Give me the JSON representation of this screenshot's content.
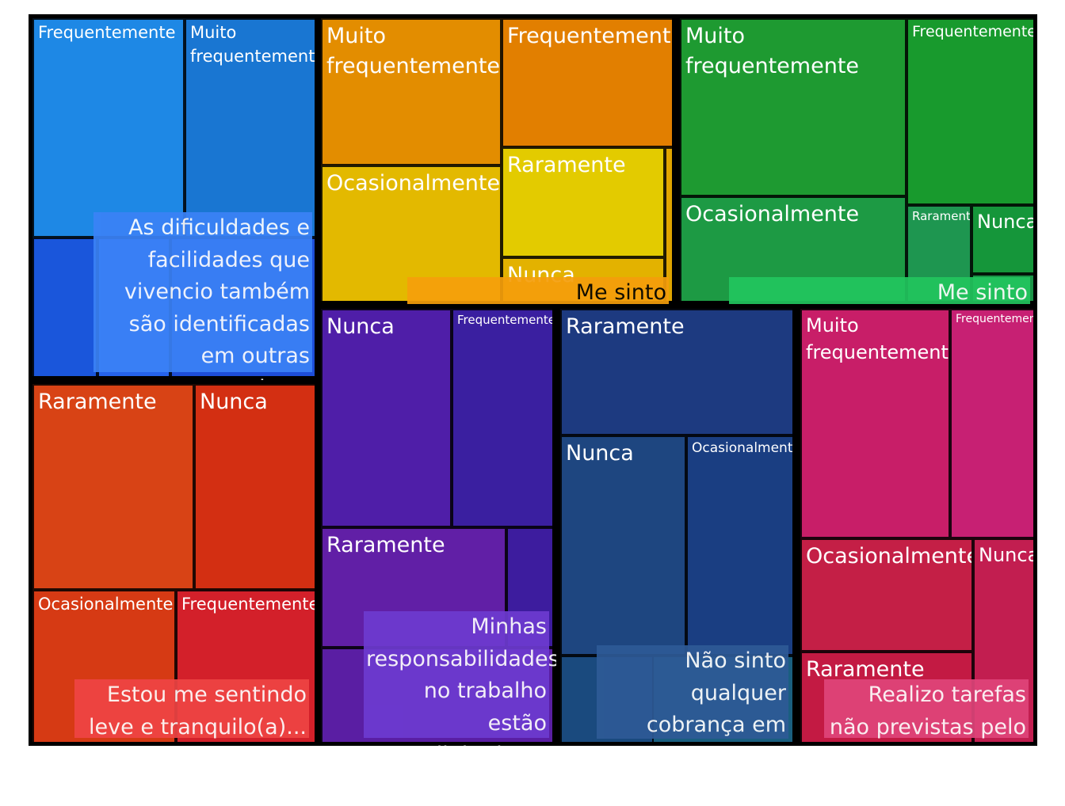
{
  "chart_data": {
    "type": "treemap",
    "groups": [
      {
        "name": "As dificuldades e facilidades que vivencio também são identificadas em outras categorias...",
        "color": "#1e78d8",
        "label_bg": "#3b82f6",
        "label_color": "#ffffff",
        "children": [
          {
            "name": "Frequentemente",
            "color": "#1e88e5"
          },
          {
            "name": "Muito frequentemente",
            "color": "#1976d2"
          },
          {
            "name": "",
            "color": "#1a56db"
          },
          {
            "name": "",
            "color": "#2563eb"
          },
          {
            "name": "",
            "color": "#1d4ed8"
          }
        ]
      },
      {
        "name": "Estou me sentindo leve e tranquilo(a)...",
        "color": "#d84315",
        "label_bg": "#ef4444",
        "label_color": "#ffffff",
        "children": [
          {
            "name": "Raramente",
            "color": "#d84315"
          },
          {
            "name": "Nunca",
            "color": "#d32f12"
          },
          {
            "name": "Ocasionalmente",
            "color": "#d63a14"
          },
          {
            "name": "Frequentemente",
            "color": "#d3202a"
          }
        ]
      },
      {
        "name": "Me sinto pressionado(a)...",
        "color": "#e69500",
        "label_bg": "#f59e0b",
        "label_color": "#000000",
        "children": [
          {
            "name": "Muito frequentemente",
            "color": "#e38d00"
          },
          {
            "name": "Frequentemente",
            "color": "#e27f00"
          },
          {
            "name": "Ocasionalmente",
            "color": "#e3b900"
          },
          {
            "name": "Raramente",
            "color": "#e3cb00"
          },
          {
            "name": "Nunca",
            "color": "#e3b200"
          },
          {
            "name": "",
            "color": "#e0a500"
          }
        ]
      },
      {
        "name": "Me sinto sobrecarregado(a)...",
        "color": "#1f9a38",
        "label_bg": "#22c55e",
        "label_color": "#ffffff",
        "children": [
          {
            "name": "Muito frequentemente",
            "color": "#1e9a31"
          },
          {
            "name": "Frequentemente",
            "color": "#189a2d"
          },
          {
            "name": "Ocasionalmente",
            "color": "#1d9a44"
          },
          {
            "name": "Raramente",
            "color": "#1e9650"
          },
          {
            "name": "Nunca",
            "color": "#15963a"
          },
          {
            "name": "",
            "color": "#1a9446"
          }
        ]
      },
      {
        "name": "Minhas responsabilidades no trabalho estão alinhadas...",
        "color": "#5a1ea8",
        "label_bg": "#6d3bd0",
        "label_color": "#ffffff",
        "children": [
          {
            "name": "Nunca",
            "color": "#4f1ea8"
          },
          {
            "name": "Frequentemente",
            "color": "#3a1fa0"
          },
          {
            "name": "Raramente",
            "color": "#611fa6"
          },
          {
            "name": "",
            "color": "#3d1c9e"
          },
          {
            "name": "",
            "color": "#5a1ea3"
          }
        ]
      },
      {
        "name": "Não sinto qualquer cobrança em relação a metas...",
        "color": "#1b3d80",
        "label_bg": "#2e5a96",
        "label_color": "#ffffff",
        "children": [
          {
            "name": "Raramente",
            "color": "#1d3a80"
          },
          {
            "name": "Nunca",
            "color": "#1e4680"
          },
          {
            "name": "Ocasionalmente",
            "color": "#1a3e82"
          },
          {
            "name": "",
            "color": "#1a5f80"
          },
          {
            "name": "",
            "color": "#1a4a7e"
          }
        ]
      },
      {
        "name": "Realizo tarefas não previstas pelo cargo",
        "color": "#c8236a",
        "label_bg": "#e0457a",
        "label_color": "#ffffff",
        "children": [
          {
            "name": "Muito frequentemente",
            "color": "#c81e68"
          },
          {
            "name": "Frequentemente",
            "color": "#c72073"
          },
          {
            "name": "Ocasionalmente",
            "color": "#c41f46"
          },
          {
            "name": "Nunca",
            "color": "#c21e50"
          },
          {
            "name": "Raramente",
            "color": "#c31a43"
          }
        ]
      }
    ]
  }
}
